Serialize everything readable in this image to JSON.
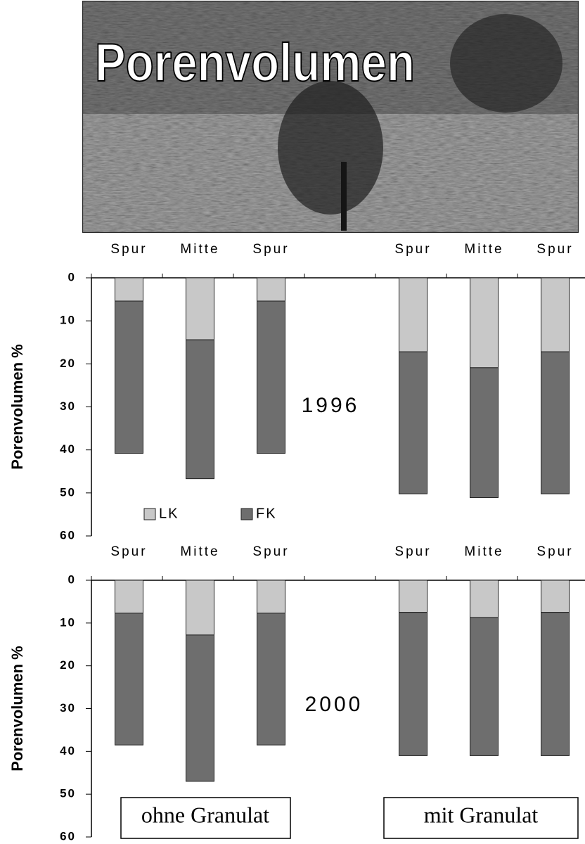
{
  "header": {
    "title": "Porenvolumen"
  },
  "chart_data": [
    {
      "type": "bar",
      "stacked": true,
      "y_inverted": true,
      "legend": true,
      "ylabel": "Porenvolumen %",
      "categories": [
        "Spur",
        "Mitte",
        "Spur",
        null,
        "Spur",
        "Mitte",
        "Spur"
      ],
      "series": [
        {
          "name": "LK",
          "color": "#c8c8c8",
          "values": [
            5.4,
            14.4,
            5.4,
            null,
            17.2,
            20.9,
            17.2
          ]
        },
        {
          "name": "FK",
          "color": "#6e6e6e",
          "values": [
            35.4,
            32.3,
            35.4,
            null,
            33,
            30.2,
            33
          ]
        }
      ],
      "ylim": [
        0,
        60
      ],
      "yticks": [
        0,
        10,
        20,
        30,
        40,
        50,
        60
      ],
      "annotations": [
        "1996"
      ]
    },
    {
      "type": "bar",
      "stacked": true,
      "y_inverted": true,
      "legend": false,
      "ylabel": "Porenvolumen %",
      "categories": [
        "Spur",
        "Mitte",
        "Spur",
        null,
        "Spur",
        "Mitte",
        "Spur"
      ],
      "series": [
        {
          "name": "LK",
          "color": "#c8c8c8",
          "values": [
            7.7,
            12.8,
            7.7,
            null,
            7.5,
            8.7,
            7.5
          ]
        },
        {
          "name": "FK",
          "color": "#6e6e6e",
          "values": [
            30.8,
            34.2,
            30.8,
            null,
            33.5,
            32.3,
            33.5
          ]
        }
      ],
      "ylim": [
        0,
        60
      ],
      "yticks": [
        0,
        10,
        20,
        30,
        40,
        50,
        60
      ],
      "annotations": [
        "2000",
        "ohne Granulat",
        "mit Granulat"
      ]
    }
  ]
}
